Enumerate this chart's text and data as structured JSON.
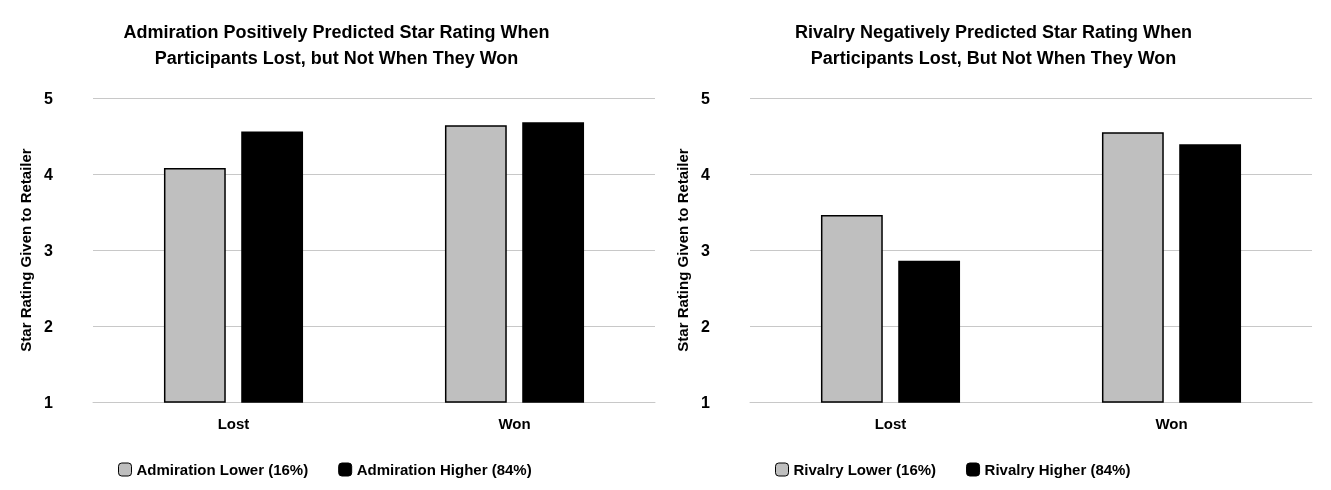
{
  "chart_data": [
    {
      "type": "bar",
      "title": "Admiration Positively Predicted Star Rating When\nParticipants Lost, but Not When They Won",
      "ylabel": "Star Rating Given to Retailer",
      "categories": [
        "Lost",
        "Won"
      ],
      "series": [
        {
          "name": "Admiration Lower (16%)",
          "color": "#bfbfbf",
          "values": [
            4.08,
            4.64
          ]
        },
        {
          "name": "Admiration Higher (84%)",
          "color": "#000000",
          "values": [
            4.56,
            4.68
          ]
        }
      ],
      "ylim": [
        1,
        5
      ],
      "yticks": [
        1,
        2,
        3,
        4,
        5
      ],
      "grid": "y",
      "legend": "bottom left"
    },
    {
      "type": "bar",
      "title": "Rivalry Negatively Predicted Star Rating When\nParticipants Lost, But Not When They Won",
      "ylabel": "Star Rating Given to Retailer",
      "categories": [
        "Lost",
        "Won"
      ],
      "series": [
        {
          "name": "Rivalry Lower (16%)",
          "color": "#bfbfbf",
          "values": [
            3.46,
            4.55
          ]
        },
        {
          "name": "Rivalry Higher (84%)",
          "color": "#000000",
          "values": [
            2.86,
            4.39
          ]
        }
      ],
      "ylim": [
        1,
        5
      ],
      "yticks": [
        1,
        2,
        3,
        4,
        5
      ],
      "grid": "y",
      "legend": "bottom left"
    }
  ]
}
